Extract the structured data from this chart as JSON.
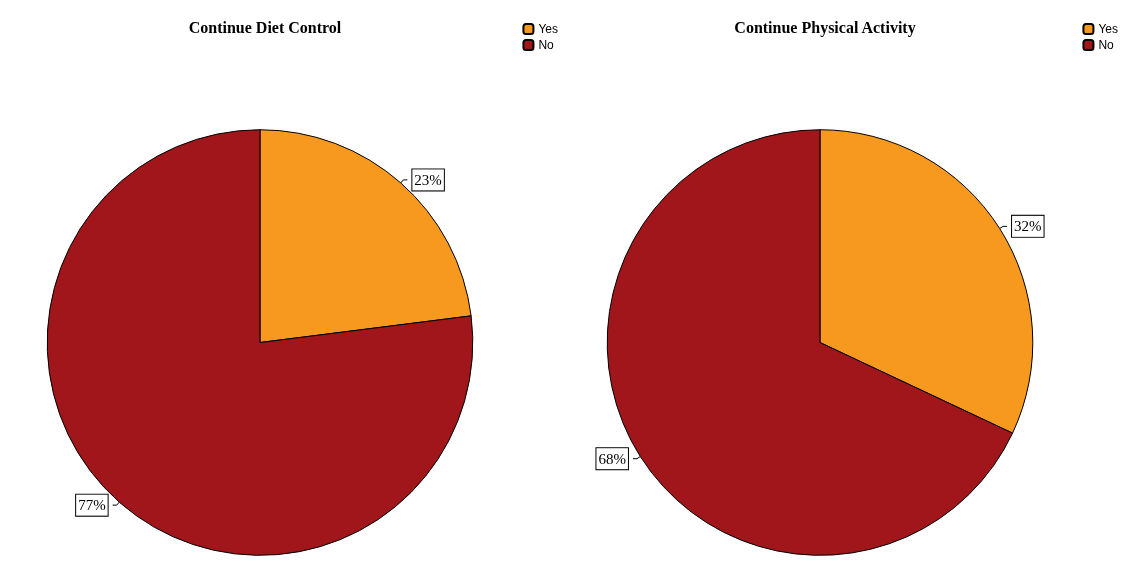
{
  "chart_data": [
    {
      "type": "pie",
      "title": "Continue Diet Control",
      "categories": [
        "Yes",
        "No"
      ],
      "values": [
        23,
        77
      ],
      "colors": [
        "#f7991f",
        "#a0161a"
      ],
      "legend": "top right",
      "value_labels": [
        "23%",
        "77%"
      ]
    },
    {
      "type": "pie",
      "title": "Continue Physical Activity",
      "categories": [
        "Yes",
        "No"
      ],
      "values": [
        32,
        68
      ],
      "colors": [
        "#f7991f",
        "#a0161a"
      ],
      "legend": "top right",
      "value_labels": [
        "32%",
        "68%"
      ]
    }
  ]
}
